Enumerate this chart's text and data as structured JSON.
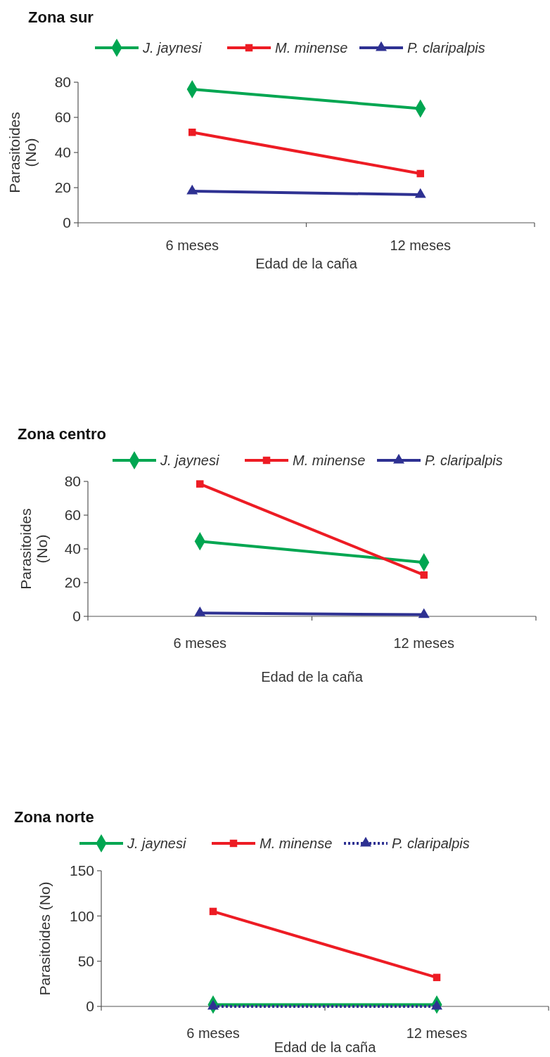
{
  "chart_data": [
    {
      "type": "line",
      "title": "Zona sur",
      "xlabel": "Edad de la caña",
      "ylabel": "Parasitoides (No)",
      "categories": [
        "6 meses",
        "12 meses"
      ],
      "ylim": [
        0,
        80
      ],
      "yticks": [
        0,
        20,
        40,
        60,
        80
      ],
      "legend": "top",
      "grid": false,
      "series": [
        {
          "name": "J. jaynesi",
          "color": "#00a651",
          "values": [
            76,
            65
          ],
          "marker": "diamond",
          "line_style": "solid"
        },
        {
          "name": "M. minense",
          "color": "#ed1c24",
          "values": [
            51.5,
            28
          ],
          "marker": "square",
          "line_style": "solid"
        },
        {
          "name": "P. claripalpis",
          "color": "#2e3192",
          "values": [
            18,
            16
          ],
          "marker": "triangle",
          "line_style": "solid"
        }
      ]
    },
    {
      "type": "line",
      "title": "Zona centro",
      "xlabel": "Edad de la caña",
      "ylabel": "Parasitoides (No)",
      "categories": [
        "6 meses",
        "12 meses"
      ],
      "ylim": [
        0,
        80
      ],
      "yticks": [
        0,
        20,
        40,
        60,
        80
      ],
      "legend": "top",
      "grid": false,
      "series": [
        {
          "name": "J. jaynesi",
          "color": "#00a651",
          "values": [
            44.5,
            32
          ],
          "marker": "diamond",
          "line_style": "solid"
        },
        {
          "name": "M. minense",
          "color": "#ed1c24",
          "values": [
            78.5,
            24.5
          ],
          "marker": "square",
          "line_style": "solid"
        },
        {
          "name": "P. claripalpis",
          "color": "#2e3192",
          "values": [
            2,
            1
          ],
          "marker": "triangle",
          "line_style": "solid"
        }
      ]
    },
    {
      "type": "line",
      "title": "Zona norte",
      "xlabel": "Edad de la caña",
      "ylabel": "Parasitoides (No)",
      "categories": [
        "6 meses",
        "12 meses"
      ],
      "ylim": [
        0,
        150
      ],
      "yticks": [
        0,
        50,
        100,
        150
      ],
      "legend": "top",
      "grid": false,
      "series": [
        {
          "name": "J. jaynesi",
          "color": "#00a651",
          "values": [
            2,
            2
          ],
          "marker": "diamond",
          "line_style": "solid"
        },
        {
          "name": "M. minense",
          "color": "#ed1c24",
          "values": [
            105,
            32
          ],
          "marker": "square",
          "line_style": "solid"
        },
        {
          "name": "P. claripalpis",
          "color": "#2e3192",
          "values": [
            0,
            0
          ],
          "marker": "triangle",
          "line_style": "dotted"
        }
      ]
    }
  ]
}
